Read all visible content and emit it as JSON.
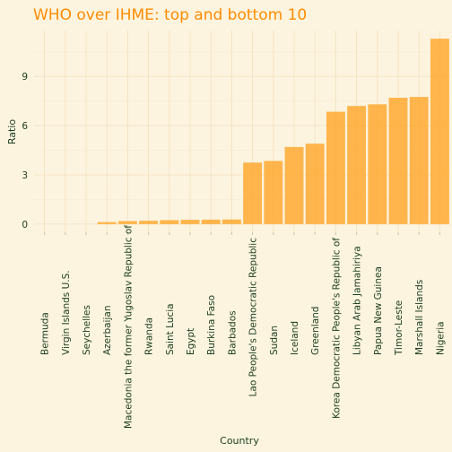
{
  "chart_data": {
    "type": "bar",
    "title": "WHO over IHME: top and bottom 10",
    "xlabel": "Country",
    "ylabel": "Ratio",
    "ylim": [
      -0.5,
      11.8
    ],
    "yticks": [
      0,
      3,
      6,
      9
    ],
    "grid": true,
    "legend": "none",
    "bar_color": "#ffa526",
    "title_color": "#ff8c00",
    "text_color": "#1a3d1a",
    "background": "#fdf4e0",
    "categories": [
      "Bermuda",
      "Virgin Islands U.S.",
      "Seychelles",
      "Azerbaijan",
      "Macedonia the former Yugoslav Republic of",
      "Rwanda",
      "Saint Lucia",
      "Egypt",
      "Burkina Faso",
      "Barbados",
      "Lao People's Democratic Republic",
      "Sudan",
      "Iceland",
      "Greenland",
      "Korea Democratic People's Republic of",
      "Libyan Arab Jamahiriya",
      "Papua New Guinea",
      "Timor-Leste",
      "Marshall Islands",
      "Nigeria"
    ],
    "values": [
      0,
      0,
      0,
      0.12,
      0.18,
      0.2,
      0.24,
      0.26,
      0.27,
      0.28,
      3.75,
      3.85,
      4.7,
      4.9,
      6.85,
      7.2,
      7.3,
      7.7,
      7.75,
      11.3
    ]
  }
}
